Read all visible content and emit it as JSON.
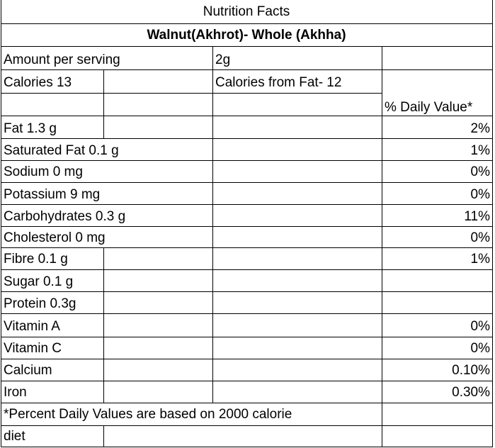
{
  "title": "Nutrition Facts",
  "subtitle": "Walnut(Akhrot)- Whole (Akhha)",
  "serving": {
    "label": "Amount per serving",
    "value": "2g"
  },
  "calories": {
    "label": "Calories 13",
    "from_fat": "Calories from Fat- 12"
  },
  "daily_value_header": "% Daily Value*",
  "nutrients": [
    {
      "name": "Fat 1.3 g",
      "dv": "2%"
    },
    {
      "name": "Saturated Fat 0.1 g",
      "dv": "1%"
    },
    {
      "name": "Sodium 0 mg",
      "dv": "0%"
    },
    {
      "name": "Potassium 9 mg",
      "dv": "0%"
    },
    {
      "name": "Carbohydrates 0.3 g",
      "dv": "11%"
    },
    {
      "name": "Cholesterol 0 mg",
      "dv": "0%"
    },
    {
      "name": "Fibre 0.1 g",
      "dv": "1%"
    },
    {
      "name": "Sugar 0.1 g",
      "dv": ""
    },
    {
      "name": "Protein 0.3g",
      "dv": ""
    },
    {
      "name": "Vitamin A",
      "dv": "0%"
    },
    {
      "name": "Vitamin C",
      "dv": "0%"
    },
    {
      "name": "Calcium",
      "dv": "0.10%"
    },
    {
      "name": "Iron",
      "dv": "0.30%"
    }
  ],
  "footnote": {
    "line1": "*Percent Daily Values are based on 2000 calorie",
    "line2": "diet"
  }
}
